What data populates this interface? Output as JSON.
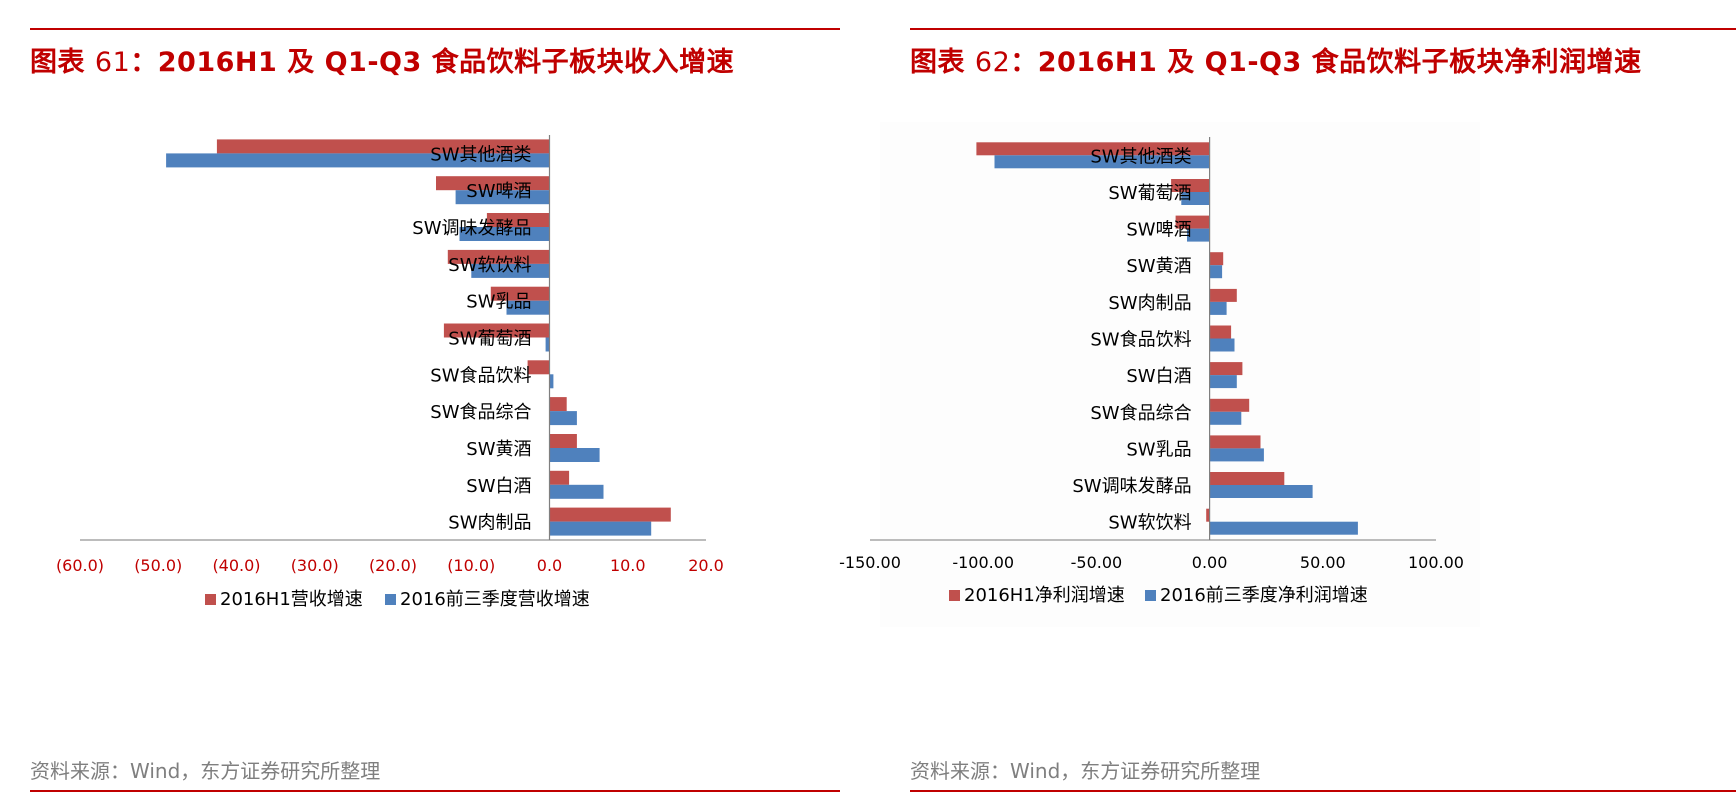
{
  "colors": {
    "accent": "#c00000",
    "series_h1": "#c0504d",
    "series_q3": "#4f81bd",
    "axis_line": "#a6a6a6",
    "source_text": "#7f7f7f"
  },
  "chart_data": [
    {
      "id": "left",
      "type": "bar",
      "orientation": "horizontal",
      "title": {
        "prefix": "图表 ",
        "number": "61",
        "rest": "：2016H1 及 Q1-Q3 食品饮料子板块收入增速"
      },
      "categories": [
        "SW其他酒类",
        "SW啤酒",
        "SW调味发酵品",
        "SW软饮料",
        "SW乳品",
        "SW葡萄酒",
        "SW食品饮料",
        "SW食品综合",
        "SW黄酒",
        "SW白酒",
        "SW肉制品"
      ],
      "series": [
        {
          "name": "2016H1营收增速",
          "values": [
            -42.5,
            -14.5,
            -8.0,
            -13.0,
            -7.5,
            -13.5,
            -2.8,
            2.2,
            3.5,
            2.5,
            15.5
          ]
        },
        {
          "name": "2016前三季度营收增速",
          "values": [
            -49.0,
            -12.0,
            -11.5,
            -10.0,
            -5.5,
            -0.5,
            0.5,
            3.5,
            6.4,
            6.9,
            13.0
          ]
        }
      ],
      "xlim": [
        -60,
        20
      ],
      "xticks": [
        -60,
        -50,
        -40,
        -30,
        -20,
        -10,
        0,
        10,
        20
      ],
      "xtick_labels": [
        "(60.0)",
        "(50.0)",
        "(40.0)",
        "(30.0)",
        "(20.0)",
        "(10.0)",
        "0.0",
        "10.0",
        "20.0"
      ],
      "source": "资料来源：Wind，东方证券研究所整理"
    },
    {
      "id": "right",
      "type": "bar",
      "orientation": "horizontal",
      "title": {
        "prefix": "图表 ",
        "number": "62",
        "rest": "：2016H1 及 Q1-Q3 食品饮料子板块净利润增速"
      },
      "categories": [
        "SW其他酒类",
        "SW葡萄酒",
        "SW啤酒",
        "SW黄酒",
        "SW肉制品",
        "SW食品饮料",
        "SW白酒",
        "SW食品综合",
        "SW乳品",
        "SW调味发酵品",
        "SW软饮料"
      ],
      "series": [
        {
          "name": "2016H1净利润增速",
          "values": [
            -103.0,
            -17.0,
            -15.0,
            6.0,
            12.0,
            9.5,
            14.5,
            17.5,
            22.5,
            33.0,
            -1.5
          ]
        },
        {
          "name": "2016前三季度净利润增速",
          "values": [
            -95.0,
            -12.5,
            -10.0,
            5.5,
            7.5,
            11.0,
            12.0,
            14.0,
            24.0,
            45.5,
            65.5
          ]
        }
      ],
      "xlim": [
        -150,
        100
      ],
      "xticks": [
        -150,
        -100,
        -50,
        0,
        50,
        100
      ],
      "xtick_labels": [
        "-150.00",
        "-100.00",
        "-50.00",
        "0.00",
        "50.00",
        "100.00"
      ],
      "source": "资料来源：Wind，东方证券研究所整理"
    }
  ]
}
